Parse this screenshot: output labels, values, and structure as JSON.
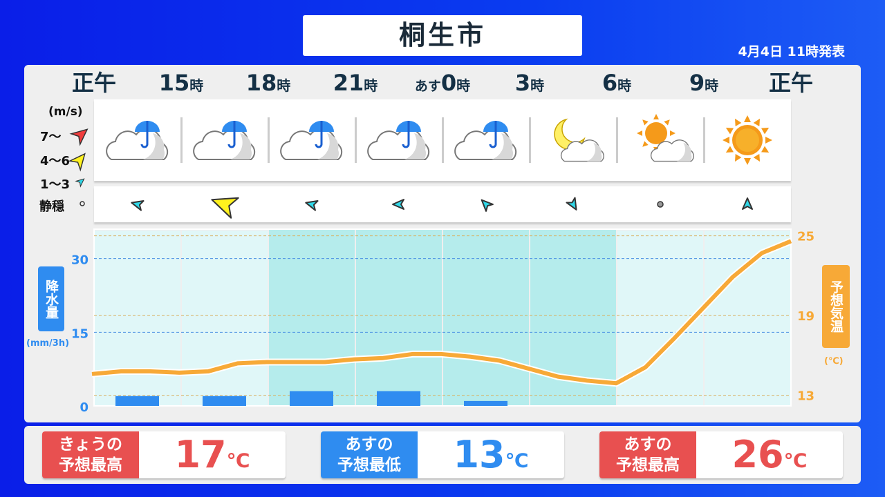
{
  "header": {
    "title": "桐生市",
    "issued": "4月4日 11時発表"
  },
  "hours": [
    {
      "pre": "",
      "num": "正午",
      "suf": ""
    },
    {
      "pre": "",
      "num": "15",
      "suf": "時"
    },
    {
      "pre": "",
      "num": "18",
      "suf": "時"
    },
    {
      "pre": "",
      "num": "21",
      "suf": "時"
    },
    {
      "pre": "あす",
      "num": "0",
      "suf": "時"
    },
    {
      "pre": "",
      "num": "3",
      "suf": "時"
    },
    {
      "pre": "",
      "num": "6",
      "suf": "時"
    },
    {
      "pre": "",
      "num": "9",
      "suf": "時"
    },
    {
      "pre": "",
      "num": "正午",
      "suf": ""
    }
  ],
  "weather_icons": [
    "rain-cloud-umbrella",
    "rain-cloud-umbrella",
    "rain-cloud-umbrella",
    "rain-cloud-umbrella",
    "rain-cloud-umbrella",
    "moon-cloud",
    "sun-cloud",
    "sun"
  ],
  "wind_legend": {
    "unit": "(m/s)",
    "strong": "7〜",
    "moderate": "4〜6",
    "light": "1〜3",
    "calm": "静穏"
  },
  "wind": [
    {
      "speed_class": "light",
      "direction_deg": 195
    },
    {
      "speed_class": "moderate",
      "direction_deg": 200
    },
    {
      "speed_class": "light",
      "direction_deg": 195
    },
    {
      "speed_class": "light",
      "direction_deg": 180
    },
    {
      "speed_class": "light",
      "direction_deg": 225
    },
    {
      "speed_class": "light",
      "direction_deg": 60
    },
    {
      "speed_class": "calm",
      "direction_deg": 0
    },
    {
      "speed_class": "light",
      "direction_deg": 270
    }
  ],
  "colors": {
    "strong": "#f03c3c",
    "moderate": "#fff21e",
    "light": "#30d8e8",
    "rain": "#2f8cf0",
    "temp": "#f7a937",
    "high": "#e85050",
    "low": "#2f8cf0"
  },
  "chart_data": {
    "type": "bar+line",
    "rain": {
      "label": "降水量",
      "unit": "(mm/3h)",
      "ticks": [
        "0",
        "15",
        "30"
      ],
      "ylim": [
        0,
        36
      ],
      "values": [
        2,
        2,
        3,
        3,
        1,
        0,
        0,
        0
      ]
    },
    "temp": {
      "label": "予想気温",
      "unit": "(℃)",
      "ticks": [
        "13",
        "19",
        "25"
      ],
      "ylim": [
        12.2,
        25.5
      ],
      "values": [
        14.6,
        14.8,
        14.8,
        14.7,
        14.8,
        15.4,
        15.5,
        15.5,
        15.5,
        15.7,
        15.8,
        16.1,
        16.1,
        15.9,
        15.6,
        15.0,
        14.4,
        14.1,
        13.9,
        15.1,
        17.3,
        19.6,
        21.9,
        23.7,
        24.6
      ]
    },
    "night_columns": [
      2,
      3,
      4,
      5
    ],
    "grid": true
  },
  "summary": [
    {
      "label1": "きょうの",
      "label2": "予想最高",
      "value": "17",
      "unit": "℃",
      "kind": "high"
    },
    {
      "label1": "あすの",
      "label2": "予想最低",
      "value": "13",
      "unit": "℃",
      "kind": "low"
    },
    {
      "label1": "あすの",
      "label2": "予想最高",
      "value": "26",
      "unit": "℃",
      "kind": "high"
    }
  ]
}
